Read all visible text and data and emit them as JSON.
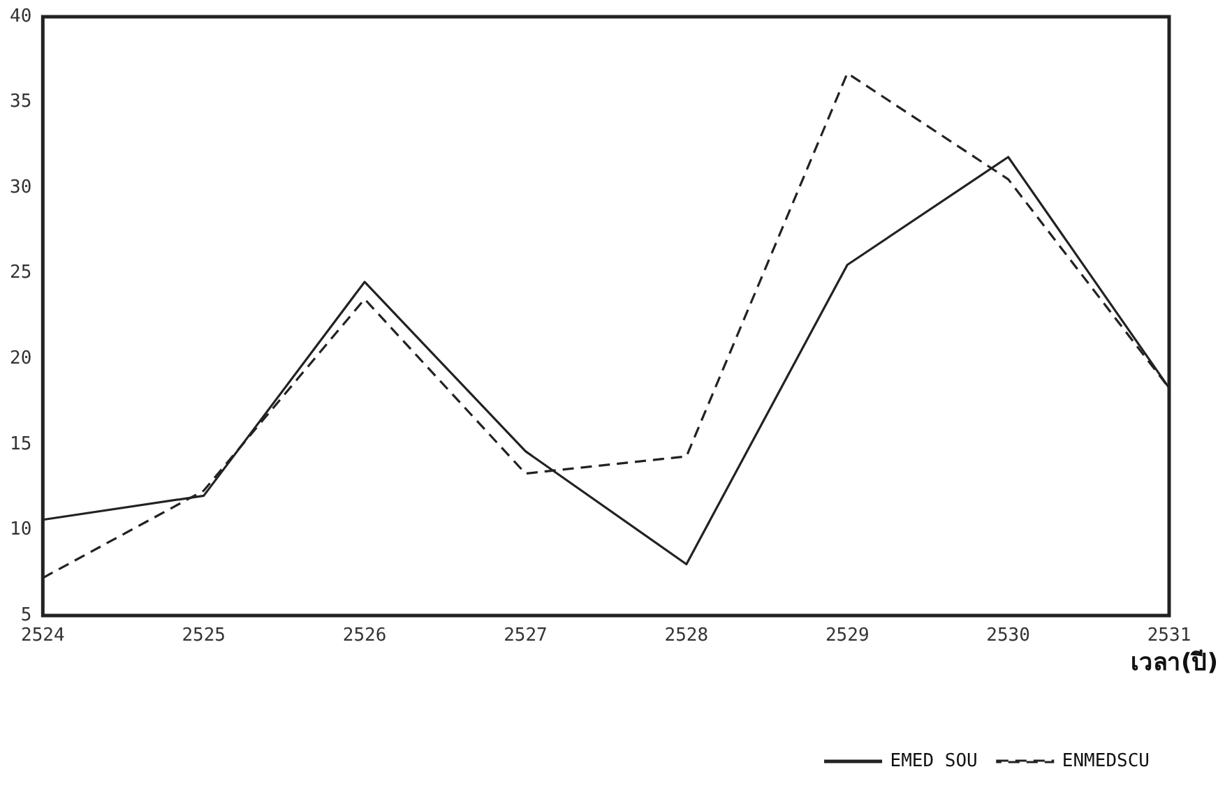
{
  "chart_data": {
    "type": "line",
    "xlabel": "เวลา(ปี)",
    "x": [
      2524,
      2525,
      2526,
      2527,
      2528,
      2529,
      2530,
      2531
    ],
    "xlim": [
      2524,
      2531
    ],
    "xticks": [
      2524,
      2525,
      2526,
      2527,
      2528,
      2529,
      2530,
      2531
    ],
    "ylim": [
      5,
      40
    ],
    "yticks": [
      5,
      10,
      15,
      20,
      25,
      30,
      35,
      40
    ],
    "grid": false,
    "legend": "bottom right",
    "marker": "none",
    "series": [
      {
        "name": "EMED SOU",
        "color": "#222222",
        "line_style": "solid",
        "values": [
          10.6,
          12,
          24.5,
          14.6,
          8,
          25.5,
          31.8,
          18.3
        ]
      },
      {
        "name": "ENMEDSCU",
        "color": "#222222",
        "line_style": "dashed",
        "values": [
          7.2,
          12.3,
          23.5,
          13.3,
          14.3,
          36.7,
          30.5,
          18.3
        ]
      }
    ]
  }
}
